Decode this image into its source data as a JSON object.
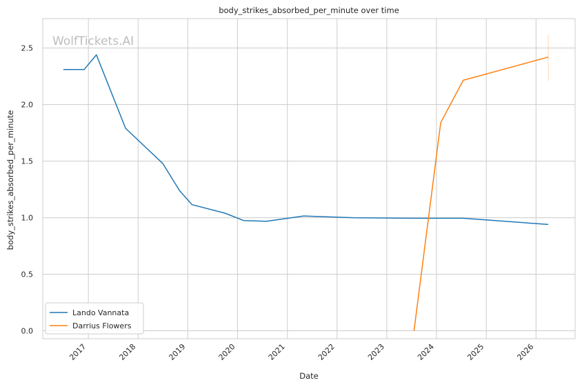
{
  "chart_data": {
    "type": "line",
    "title": "body_strikes_absorbed_per_minute over time",
    "xlabel": "Date",
    "ylabel": "body_strikes_absorbed_per_minute",
    "watermark": "WolfTickets.AI",
    "x_ticks": [
      "2017",
      "2018",
      "2019",
      "2020",
      "2021",
      "2022",
      "2023",
      "2024",
      "2025",
      "2026"
    ],
    "y_ticks": [
      "0.0",
      "0.5",
      "1.0",
      "1.5",
      "2.0",
      "2.5"
    ],
    "xlim": [
      "2016-02-01",
      "2026-10-15"
    ],
    "ylim": [
      -0.07,
      2.76
    ],
    "grid": true,
    "legend_position": "lower-left",
    "series": [
      {
        "name": "Lando Vannata",
        "color": "#1f77b4",
        "points": [
          [
            "2016-07-01",
            2.31
          ],
          [
            "2016-12-01",
            2.31
          ],
          [
            "2017-03-01",
            2.44
          ],
          [
            "2017-10-01",
            1.79
          ],
          [
            "2018-07-01",
            1.48
          ],
          [
            "2018-11-01",
            1.24
          ],
          [
            "2019-02-01",
            1.115
          ],
          [
            "2019-10-01",
            1.04
          ],
          [
            "2020-02-15",
            0.975
          ],
          [
            "2020-08-01",
            0.968
          ],
          [
            "2021-05-01",
            1.015
          ],
          [
            "2022-05-01",
            1.0
          ],
          [
            "2023-08-01",
            0.995
          ],
          [
            "2024-07-15",
            0.995
          ],
          [
            "2026-04-01",
            0.94
          ]
        ]
      },
      {
        "name": "Darrius Flowers",
        "color": "#ff7f0e",
        "points": [
          [
            "2023-07-20",
            0.0
          ],
          [
            "2024-02-01",
            1.84
          ],
          [
            "2024-07-15",
            2.215
          ],
          [
            "2026-04-01",
            2.42
          ]
        ],
        "error_bar": {
          "date": "2026-04-01",
          "low": 2.21,
          "high": 2.62
        }
      }
    ]
  }
}
